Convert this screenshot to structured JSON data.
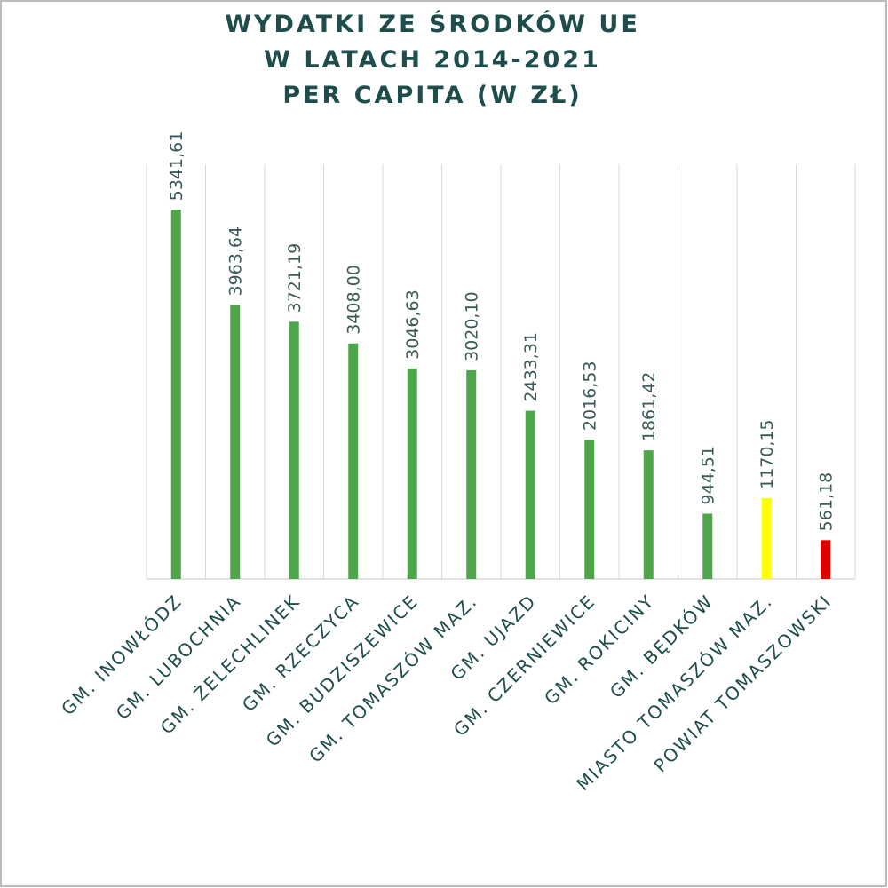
{
  "chart_data": {
    "type": "bar",
    "title": [
      "WYDATKI ZE ŚRODKÓW UE",
      "W LATACH 2014-2021",
      "PER CAPITA (W ZŁ)"
    ],
    "categories": [
      "GM. INOWŁÓDZ",
      "GM. LUBOCHNIA",
      "GM. ŻELECHLINEK",
      "GM. RZECZYCA",
      "GM. BUDZISZEWICE",
      "GM. TOMASZÓW MAZ.",
      "GM. UJAZD",
      "GM. CZERNIEWICE",
      "GM. ROKICINY",
      "GM. BĘDKÓW",
      "MIASTO TOMASZÓW MAZ.",
      "POWIAT TOMASZOWSKI"
    ],
    "values": [
      5341.61,
      3963.64,
      3721.19,
      3408.0,
      3046.63,
      3020.1,
      2433.31,
      2016.53,
      1861.42,
      944.51,
      1170.15,
      561.18
    ],
    "value_labels": [
      "5341,61",
      "3963,64",
      "3721,19",
      "3408,00",
      "3046,63",
      "3020,10",
      "2433,31",
      "2016,53",
      "1861,42",
      "944,51",
      "1170,15",
      "561,18"
    ],
    "colors": [
      "#4ea64a",
      "#4ea64a",
      "#4ea64a",
      "#4ea64a",
      "#4ea64a",
      "#4ea64a",
      "#4ea64a",
      "#4ea64a",
      "#4ea64a",
      "#4ea64a",
      "#ffff00",
      "#e00000"
    ],
    "ylim": [
      0,
      6000
    ],
    "grid": true
  }
}
